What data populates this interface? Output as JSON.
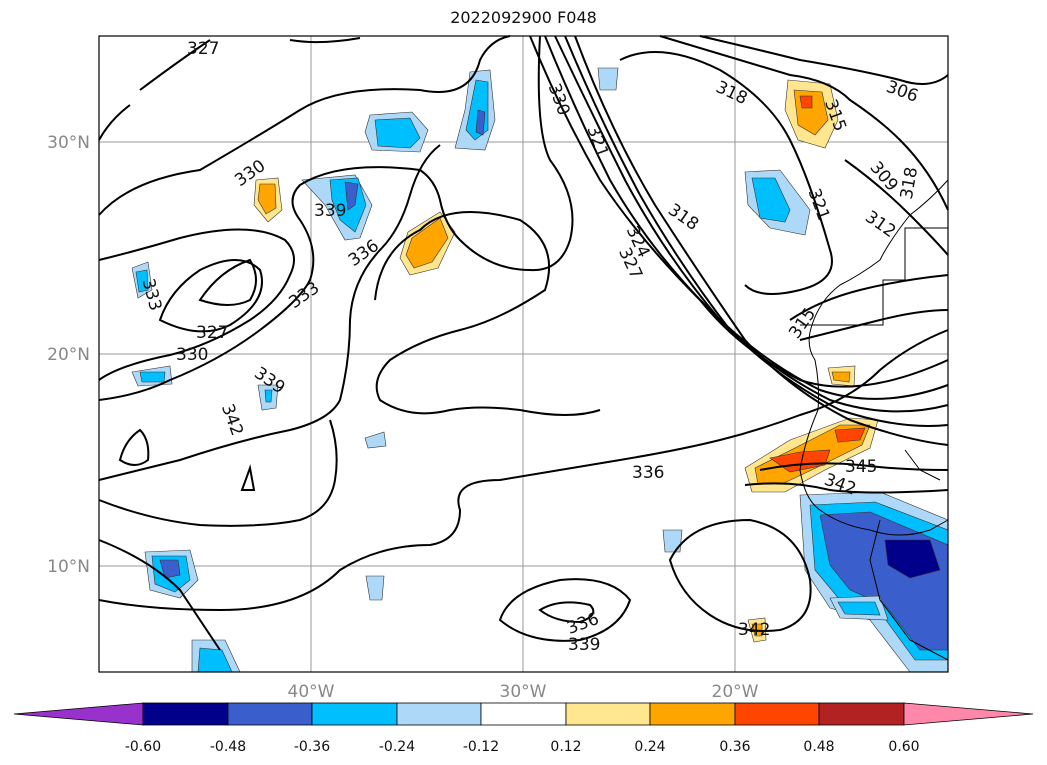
{
  "title": "2022092900 F048",
  "lat_labels": [
    "30°N",
    "20°N",
    "10°N"
  ],
  "lon_labels": [
    "40°W",
    "30°W",
    "20°W"
  ],
  "contour_labels": [
    "327",
    "327",
    "330",
    "330",
    "330",
    "333",
    "333",
    "336",
    "336",
    "339",
    "339",
    "339",
    "342",
    "342",
    "342",
    "345",
    "321",
    "324",
    "327",
    "318",
    "318",
    "321",
    "315",
    "315",
    "306",
    "309",
    "312",
    "318",
    "336"
  ],
  "colorbar": {
    "ticks": [
      "-0.60",
      "-0.48",
      "-0.36",
      "-0.24",
      "-0.12",
      "0.12",
      "0.24",
      "0.36",
      "0.48",
      "0.60"
    ],
    "colors": [
      "#9932cc",
      "#00008b",
      "#3a5fcd",
      "#00bfff",
      "#add8f7",
      "#ffffff",
      "#ffe68f",
      "#ffa500",
      "#ff4500",
      "#b22222",
      "#ff88aa"
    ]
  }
}
